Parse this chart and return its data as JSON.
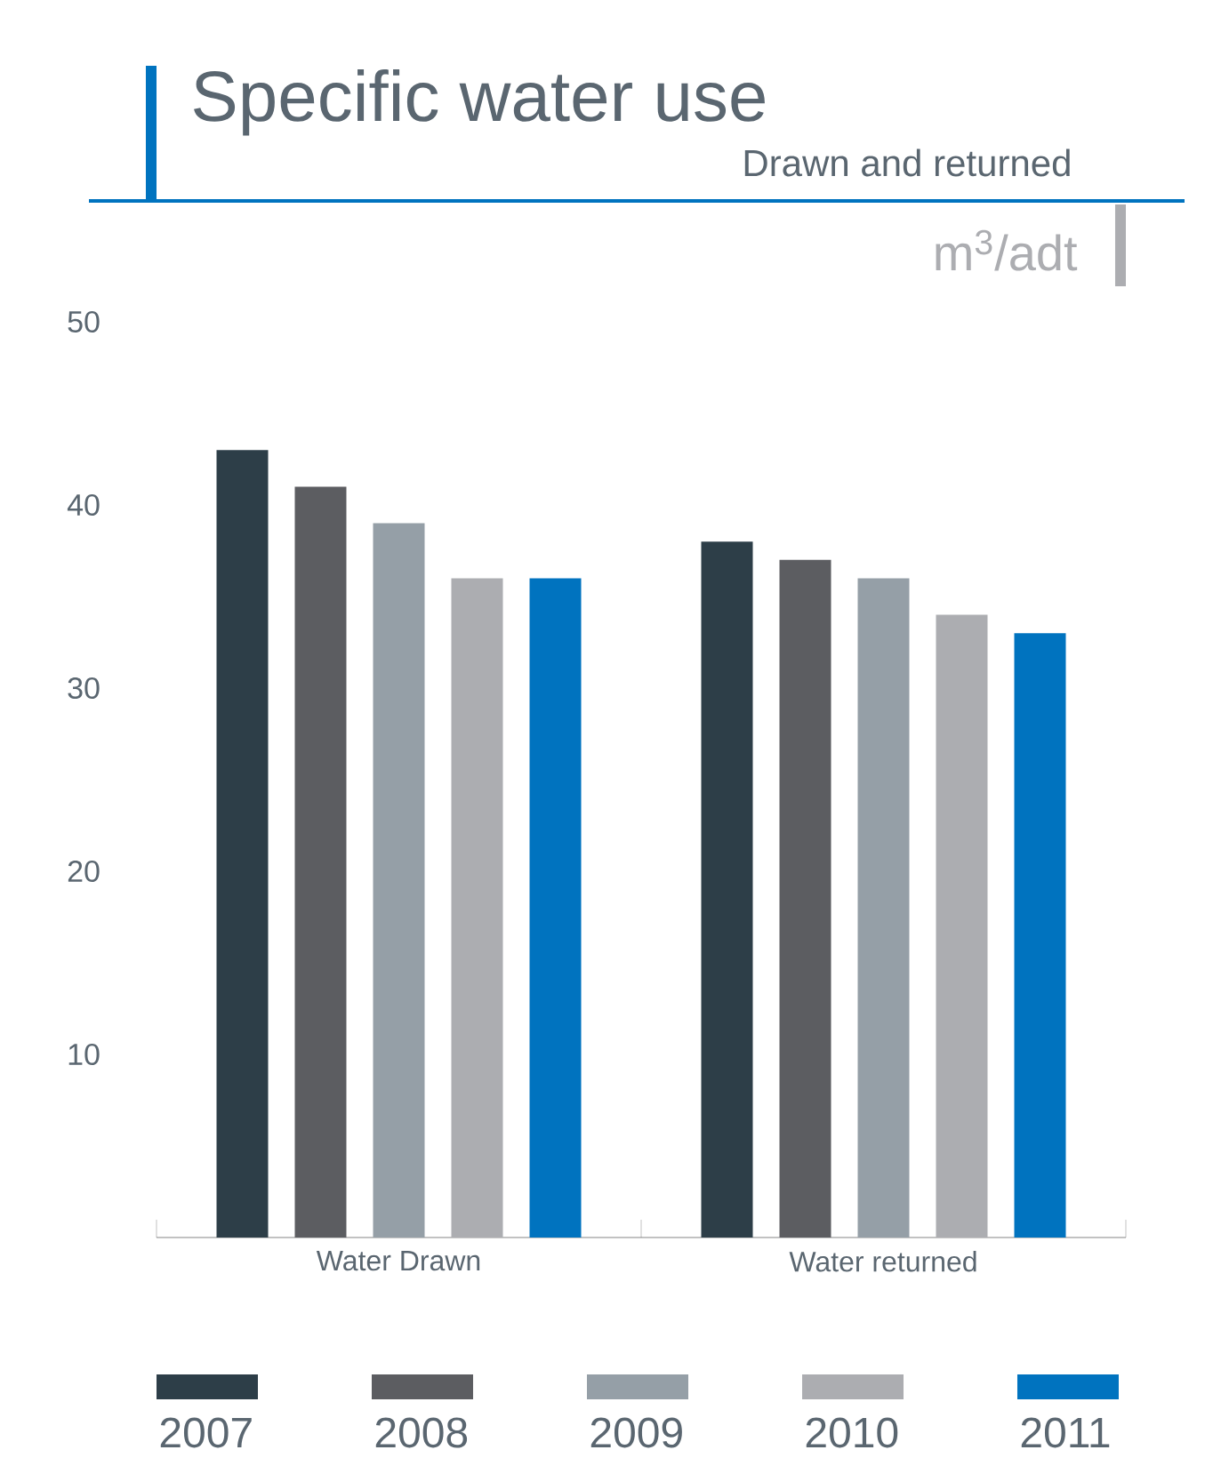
{
  "chart_data": {
    "type": "bar",
    "title": "Specific water use",
    "subtitle": "Drawn and returned",
    "ylabel": "m$^{3}$/adt",
    "categories": [
      "Water Drawn",
      "Water returned"
    ],
    "series": [
      {
        "name": "2007",
        "color": "#2d3e48",
        "values": [
          43,
          38
        ]
      },
      {
        "name": "2008",
        "color": "#5c5d61",
        "values": [
          41,
          37
        ]
      },
      {
        "name": "2009",
        "color": "#959fa7",
        "values": [
          39,
          36
        ]
      },
      {
        "name": "2010",
        "color": "#acadb1",
        "values": [
          36,
          34
        ]
      },
      {
        "name": "2011",
        "color": "#0073bf",
        "values": [
          36,
          33
        ]
      }
    ],
    "ylim": [
      0,
      50
    ],
    "yticks": [
      10,
      20,
      30,
      40,
      50
    ],
    "legend": "bottom"
  }
}
